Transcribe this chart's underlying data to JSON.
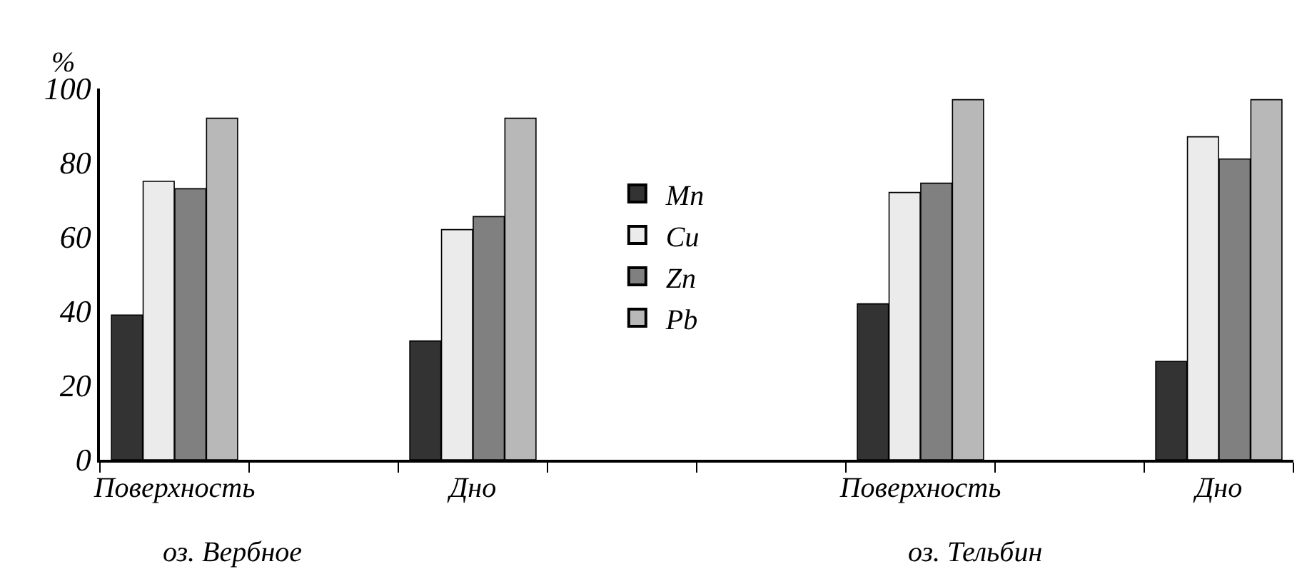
{
  "chart_data": {
    "type": "bar",
    "ylabel": "%",
    "categories": [
      "Поверхность",
      null,
      "Дно",
      null,
      null,
      "Поверхность",
      null,
      "Дно"
    ],
    "series": [
      {
        "name": "Mn",
        "color": "#333333",
        "values": [
          39,
          null,
          32,
          null,
          null,
          42,
          null,
          26.5
        ]
      },
      {
        "name": "Cu",
        "color": "#ebebeb",
        "values": [
          75,
          null,
          62,
          null,
          null,
          72,
          null,
          87
        ]
      },
      {
        "name": "Zn",
        "color": "#808080",
        "values": [
          73,
          null,
          65.5,
          null,
          null,
          74.5,
          null,
          81
        ]
      },
      {
        "name": "Pb",
        "color": "#b8b8b8",
        "values": [
          92,
          null,
          92,
          null,
          null,
          97,
          null,
          97
        ]
      }
    ],
    "ylim": [
      0,
      100
    ],
    "yticks": [
      0,
      20,
      40,
      60,
      80,
      100
    ],
    "annotations": [
      "оз. Вербное",
      "оз. Тельбин"
    ],
    "legend": "center"
  }
}
